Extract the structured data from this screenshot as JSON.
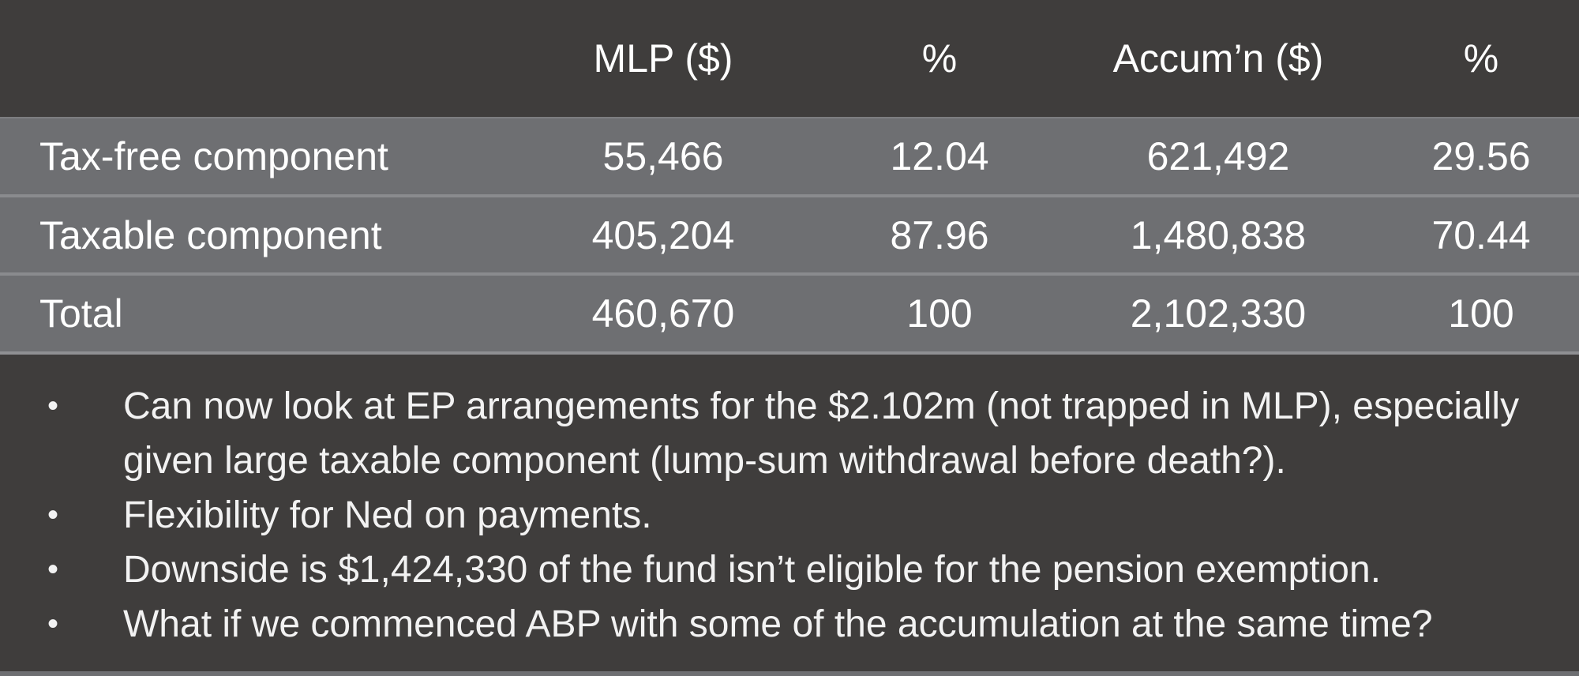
{
  "table": {
    "headers": [
      "",
      "MLP ($)",
      "%",
      "Accum’n ($)",
      "%"
    ],
    "rows": [
      {
        "label": "Tax-free component",
        "mlp": "55,466",
        "mlp_pct": "12.04",
        "accum": "621,492",
        "accum_pct": "29.56"
      },
      {
        "label": "Taxable component",
        "mlp": "405,204",
        "mlp_pct": "87.96",
        "accum": "1,480,838",
        "accum_pct": "70.44"
      },
      {
        "label": "Total",
        "mlp": "460,670",
        "mlp_pct": "100",
        "accum": "2,102,330",
        "accum_pct": "100"
      }
    ]
  },
  "bullets": {
    "marker": "•",
    "items": [
      "Can now look at EP arrangements for the $2.102m (not trapped in MLP), especially given large taxable component (lump-sum withdrawal before death?).",
      "Flexibility for Ned on payments.",
      "Downside is $1,424,330 of the fund isn’t eligible for the pension exemption.",
      "What if we commenced ABP with some of the accumulation at the same time?"
    ]
  },
  "colors": {
    "background": "#3f3d3c",
    "row_fill": "#6e6f72",
    "text": "#ffffff"
  }
}
